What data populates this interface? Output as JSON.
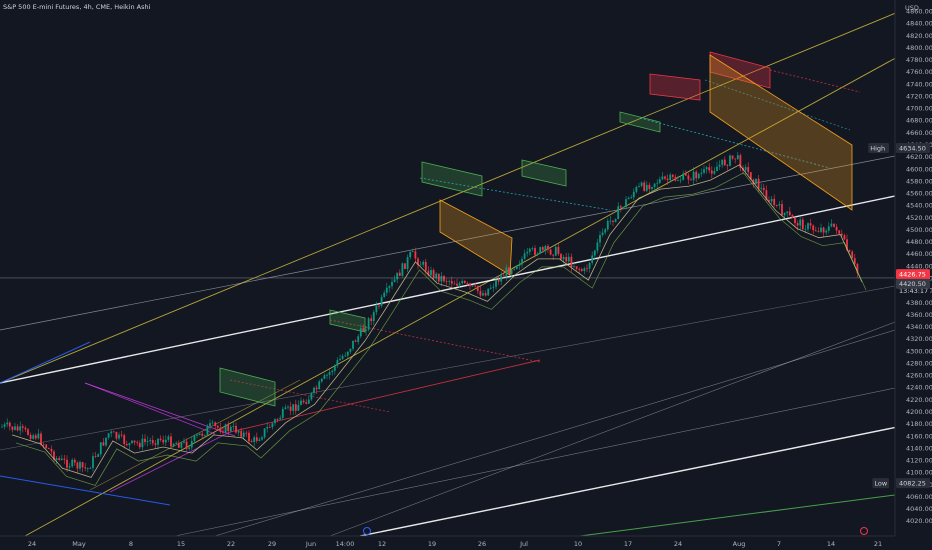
{
  "chart_data": {
    "type": "candlestick",
    "title": "S&P 500 E-mini Futures, 4h, CME, Heikin Ashi",
    "currency": "USD",
    "x_tick_labels": [
      "24",
      "May",
      "8",
      "15",
      "22",
      "29",
      "Jun",
      "14:00",
      "12",
      "19",
      "26",
      "Jul",
      "10",
      "17",
      "24",
      "Aug",
      "7",
      "14",
      "21"
    ],
    "y_tick_labels": [
      "4860.00",
      "4840.00",
      "4820.00",
      "4800.00",
      "4780.00",
      "4760.00",
      "4740.00",
      "4720.00",
      "4700.00",
      "4680.00",
      "4660.00",
      "4640.00",
      "4620.00",
      "4600.00",
      "4580.00",
      "4560.00",
      "4540.00",
      "4520.00",
      "4500.00",
      "4480.00",
      "4460.00",
      "4440.00",
      "4420.00",
      "4400.00",
      "4380.00",
      "4360.00",
      "4340.00",
      "4320.00",
      "4300.00",
      "4280.00",
      "4260.00",
      "4240.00",
      "4220.00",
      "4200.00",
      "4180.00",
      "4160.00",
      "4140.00",
      "4120.00",
      "4100.00",
      "4080.00",
      "4060.00",
      "4040.00",
      "4020.00"
    ],
    "ylim": [
      4010,
      4862
    ],
    "y_tick_step": 20,
    "grid": false,
    "high": {
      "label": "High",
      "value": 4634.5
    },
    "low": {
      "label": "Low",
      "value": 4082.25
    },
    "last_price": {
      "value": 4426.75,
      "color": "#f23645"
    },
    "crosshair_price": {
      "value": 4420.5
    },
    "price_readouts": [
      "4425.50",
      "13:43:17"
    ],
    "colors": {
      "up": "#089981",
      "down": "#f23645",
      "channel": "#c9b53a",
      "ema": "#c7c18a"
    },
    "trend": [
      {
        "x": "Apr 21",
        "y": 4175
      },
      {
        "x": "Apr 25",
        "y": 4160
      },
      {
        "x": "Apr 28",
        "y": 4120
      },
      {
        "x": "May 2",
        "y": 4105
      },
      {
        "x": "May 5",
        "y": 4165
      },
      {
        "x": "May 8",
        "y": 4145
      },
      {
        "x": "May 12",
        "y": 4155
      },
      {
        "x": "May 16",
        "y": 4145
      },
      {
        "x": "May 19",
        "y": 4175
      },
      {
        "x": "May 23",
        "y": 4170
      },
      {
        "x": "May 25",
        "y": 4150
      },
      {
        "x": "May 29",
        "y": 4195
      },
      {
        "x": "Jun 2",
        "y": 4225
      },
      {
        "x": "Jun 5",
        "y": 4270
      },
      {
        "x": "Jun 9",
        "y": 4330
      },
      {
        "x": "Jun 12",
        "y": 4385
      },
      {
        "x": "Jun 16",
        "y": 4460
      },
      {
        "x": "Jun 19",
        "y": 4425
      },
      {
        "x": "Jun 23",
        "y": 4410
      },
      {
        "x": "Jun 26",
        "y": 4395
      },
      {
        "x": "Jun 30",
        "y": 4440
      },
      {
        "x": "Jul 3",
        "y": 4465
      },
      {
        "x": "Jul 6",
        "y": 4465
      },
      {
        "x": "Jul 10",
        "y": 4430
      },
      {
        "x": "Jul 13",
        "y": 4505
      },
      {
        "x": "Jul 17",
        "y": 4565
      },
      {
        "x": "Jul 20",
        "y": 4580
      },
      {
        "x": "Jul 24",
        "y": 4585
      },
      {
        "x": "Jul 27",
        "y": 4595
      },
      {
        "x": "Jul 31",
        "y": 4620
      },
      {
        "x": "Aug 2",
        "y": 4590
      },
      {
        "x": "Aug 5",
        "y": 4545
      },
      {
        "x": "Aug 8",
        "y": 4515
      },
      {
        "x": "Aug 11",
        "y": 4500
      },
      {
        "x": "Aug 14",
        "y": 4505
      },
      {
        "x": "Aug 17",
        "y": 4427
      }
    ]
  }
}
